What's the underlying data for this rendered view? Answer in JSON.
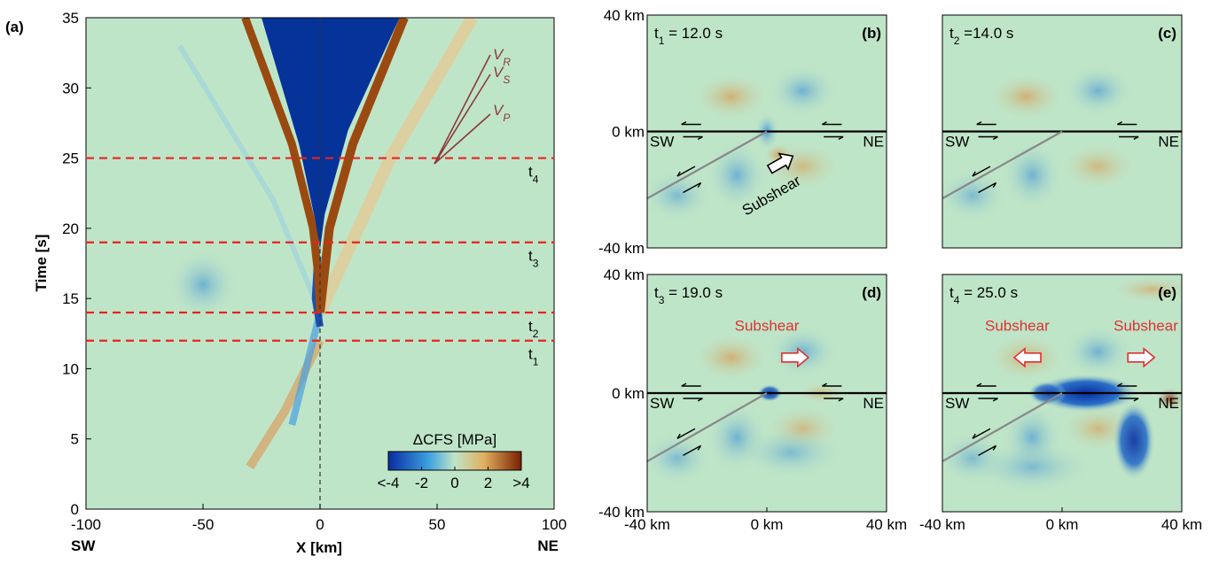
{
  "chart_data": [
    {
      "type": "heatmap",
      "panel_label": "(a)",
      "x_label": "X [km]",
      "y_label": "Time [s]",
      "xlim": [
        -100,
        100
      ],
      "ylim": [
        0,
        35
      ],
      "xticks": [
        -100,
        -50,
        0,
        50,
        100
      ],
      "yticks": [
        0,
        5,
        10,
        15,
        20,
        25,
        30,
        35
      ],
      "x_end_labels": [
        "SW",
        "NE"
      ],
      "time_lines": [
        {
          "value": 12,
          "symbol": "t",
          "sub": "1"
        },
        {
          "value": 14,
          "symbol": "t",
          "sub": "2"
        },
        {
          "value": 19,
          "symbol": "t",
          "sub": "3"
        },
        {
          "value": 25,
          "symbol": "t",
          "sub": "4"
        }
      ],
      "wave_labels": [
        {
          "symbol": "V",
          "sub": "R"
        },
        {
          "symbol": "V",
          "sub": "S"
        },
        {
          "symbol": "V",
          "sub": "P"
        }
      ],
      "colorbar": {
        "title": "ΔCFS [MPa]",
        "clim": [
          -4,
          4
        ],
        "ticks": [
          {
            "value": -4,
            "label": "<-4"
          },
          -2,
          0,
          2,
          {
            "value": 4,
            "label": ">4"
          }
        ]
      }
    },
    {
      "type": "heatmap",
      "panel_label": "(b)",
      "time": {
        "symbol": "t",
        "sub": "1",
        "text": " = 12.0 s"
      },
      "xlim": [
        -40,
        40
      ],
      "ylim": [
        -40,
        40
      ],
      "yticks": [
        {
          "value": -40,
          "label": "-40 km"
        },
        {
          "value": 0,
          "label": "0 km"
        },
        {
          "value": 40,
          "label": "40 km"
        }
      ],
      "side_labels": [
        "SW",
        "NE"
      ],
      "annotations": [
        "Subshear"
      ],
      "annotation_color": "#000000"
    },
    {
      "type": "heatmap",
      "panel_label": "(c)",
      "time": {
        "symbol": "t",
        "sub": "2",
        "text": " =14.0 s"
      },
      "xlim": [
        -40,
        40
      ],
      "ylim": [
        -40,
        40
      ],
      "side_labels": [
        "SW",
        "NE"
      ]
    },
    {
      "type": "heatmap",
      "panel_label": "(d)",
      "time": {
        "symbol": "t",
        "sub": "3",
        "text": " = 19.0 s"
      },
      "xlim": [
        -40,
        40
      ],
      "ylim": [
        -40,
        40
      ],
      "xticks": [
        {
          "value": -40,
          "label": "-40 km"
        },
        {
          "value": 0,
          "label": "0 km"
        },
        {
          "value": 40,
          "label": "40 km"
        }
      ],
      "yticks": [
        {
          "value": -40,
          "label": "-40 km"
        },
        {
          "value": 0,
          "label": "0 km"
        },
        {
          "value": 40,
          "label": "40 km"
        }
      ],
      "side_labels": [
        "SW",
        "NE"
      ],
      "annotations": [
        "Subshear"
      ],
      "annotation_color": "#e03030"
    },
    {
      "type": "heatmap",
      "panel_label": "(e)",
      "time": {
        "symbol": "t",
        "sub": "4",
        "text": " = 25.0 s"
      },
      "xlim": [
        -40,
        40
      ],
      "ylim": [
        -40,
        40
      ],
      "xticks": [
        {
          "value": -40,
          "label": "-40 km"
        },
        {
          "value": 0,
          "label": "0 km"
        },
        {
          "value": 40,
          "label": "40 km"
        }
      ],
      "side_labels": [
        "SW",
        "NE"
      ],
      "annotations": [
        "Subshear",
        "Subshear"
      ],
      "annotation_color": "#e03030"
    }
  ]
}
